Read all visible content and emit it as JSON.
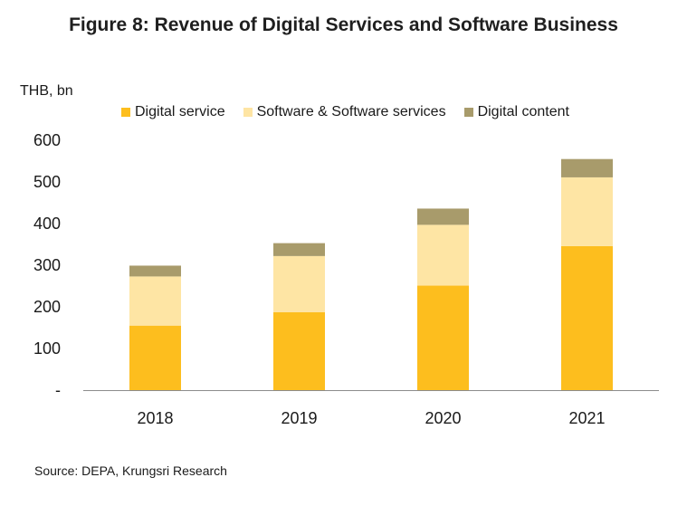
{
  "chart_data": {
    "type": "bar",
    "stacked": true,
    "title": "Figure 8: Revenue of Digital Services and Software Business",
    "ylabel": "THB, bn",
    "xlabel": "",
    "categories": [
      "2018",
      "2019",
      "2020",
      "2021"
    ],
    "series": [
      {
        "name": "Digital service",
        "color": "#FDBE1E",
        "values": [
          155,
          187,
          251,
          346
        ]
      },
      {
        "name": "Software & Software services",
        "color": "#FEE5A4",
        "values": [
          118,
          135,
          146,
          165
        ]
      },
      {
        "name": "Digital content",
        "color": "#A89B6B",
        "values": [
          26,
          31,
          39,
          44
        ]
      }
    ],
    "ylim": [
      0,
      600
    ],
    "yticks": [
      0,
      100,
      200,
      300,
      400,
      500,
      600
    ],
    "ytick_labels": [
      "-",
      "100",
      "200",
      "300",
      "400",
      "500",
      "600"
    ],
    "grid": false,
    "legend_position": "top",
    "source": "Source: DEPA, Krungsri Research"
  }
}
